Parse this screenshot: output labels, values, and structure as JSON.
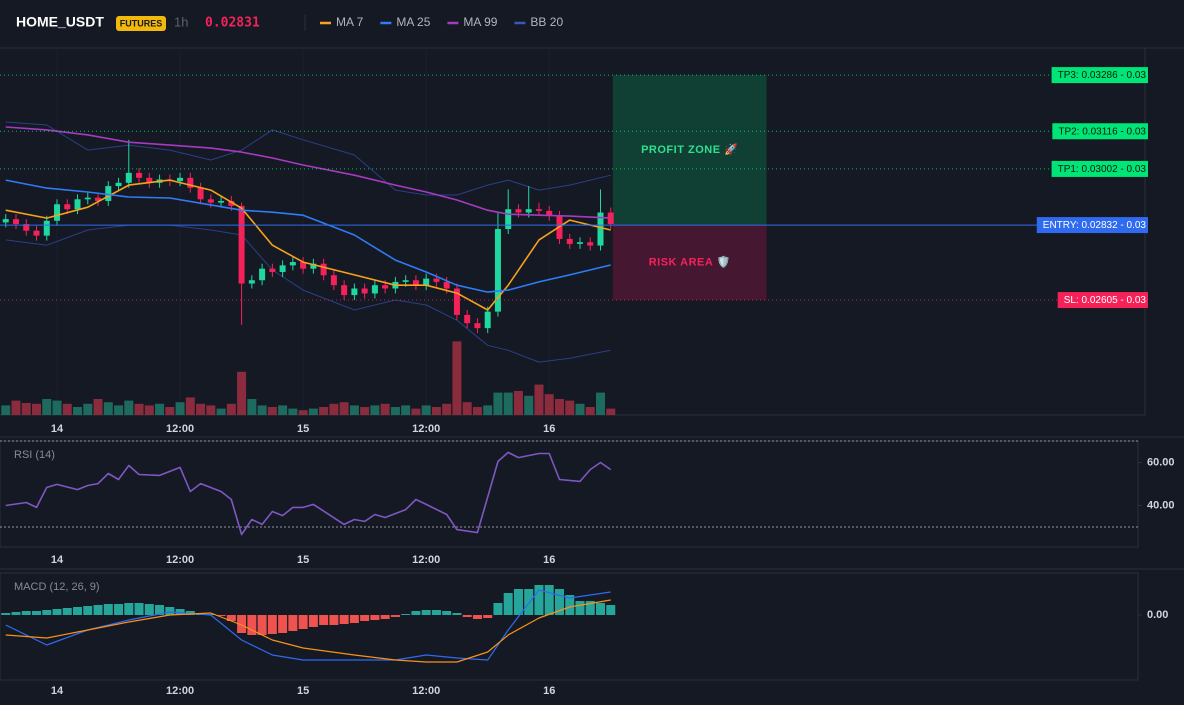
{
  "header": {
    "symbol": "HOME_USDT",
    "badge": "FUTURES",
    "interval": "1h",
    "price": "0.02831"
  },
  "chart_data": [
    {
      "type": "candlestick",
      "x": [
        -5,
        -4,
        -3,
        -2,
        -1,
        0,
        1,
        2,
        3,
        4,
        5,
        6,
        7,
        8,
        9,
        10,
        11,
        12,
        13,
        14,
        15,
        16,
        17,
        18,
        19,
        20,
        21,
        22,
        23,
        24,
        25,
        26,
        27,
        28,
        29,
        30,
        31,
        32,
        33,
        34,
        35,
        36,
        37,
        38,
        39,
        40,
        41,
        42,
        43,
        44,
        45,
        46,
        47,
        48,
        49,
        50,
        51,
        52,
        53,
        54
      ],
      "open": [
        0.0284,
        0.0285,
        0.02835,
        0.02815,
        0.028,
        0.02845,
        0.02895,
        0.0288,
        0.0291,
        0.02915,
        0.02905,
        0.0295,
        0.0296,
        0.0299,
        0.02975,
        0.0296,
        0.0297,
        0.02965,
        0.02975,
        0.02945,
        0.0291,
        0.029,
        0.02905,
        0.0289,
        0.02655,
        0.02665,
        0.027,
        0.0269,
        0.0271,
        0.0272,
        0.027,
        0.02715,
        0.0268,
        0.0265,
        0.0262,
        0.0264,
        0.02625,
        0.0265,
        0.0264,
        0.0266,
        0.02665,
        0.0265,
        0.0267,
        0.0266,
        0.0264,
        0.0256,
        0.02535,
        0.0252,
        0.0257,
        0.0282,
        0.0288,
        0.0287,
        0.0288,
        0.02875,
        0.0286,
        0.0279,
        0.02775,
        0.0278,
        0.0277,
        0.0287
      ],
      "high": [
        0.02865,
        0.02865,
        0.0285,
        0.0283,
        0.0286,
        0.0291,
        0.0291,
        0.02925,
        0.0293,
        0.0293,
        0.02965,
        0.02975,
        0.0309,
        0.03005,
        0.0299,
        0.02985,
        0.02985,
        0.0299,
        0.0299,
        0.0296,
        0.02925,
        0.0292,
        0.0292,
        0.029,
        0.0268,
        0.02715,
        0.02715,
        0.02725,
        0.02735,
        0.02735,
        0.0273,
        0.0273,
        0.02695,
        0.02665,
        0.02655,
        0.02655,
        0.02665,
        0.02665,
        0.02675,
        0.0268,
        0.0268,
        0.02685,
        0.02685,
        0.02675,
        0.02655,
        0.02575,
        0.0255,
        0.02585,
        0.0287,
        0.0294,
        0.02895,
        0.0295,
        0.029,
        0.0289,
        0.02875,
        0.02805,
        0.02795,
        0.02795,
        0.0294,
        0.02885
      ],
      "low": [
        0.02825,
        0.0282,
        0.028,
        0.02785,
        0.02785,
        0.0283,
        0.02865,
        0.02865,
        0.02895,
        0.0289,
        0.0289,
        0.02935,
        0.02945,
        0.0296,
        0.02945,
        0.02945,
        0.0295,
        0.0295,
        0.0293,
        0.02895,
        0.02885,
        0.02885,
        0.02875,
        0.0253,
        0.0264,
        0.0265,
        0.02675,
        0.02675,
        0.02695,
        0.02685,
        0.02685,
        0.02665,
        0.02635,
        0.02605,
        0.02605,
        0.0261,
        0.0261,
        0.02625,
        0.02625,
        0.02645,
        0.02635,
        0.02635,
        0.02645,
        0.02625,
        0.02545,
        0.0252,
        0.02505,
        0.02505,
        0.02555,
        0.02805,
        0.02855,
        0.02855,
        0.0286,
        0.02845,
        0.02775,
        0.0276,
        0.0276,
        0.02755,
        0.02755,
        0.0282
      ],
      "close": [
        0.0285,
        0.02835,
        0.02815,
        0.028,
        0.02845,
        0.02895,
        0.0288,
        0.0291,
        0.02915,
        0.02905,
        0.0295,
        0.0296,
        0.0299,
        0.02975,
        0.0296,
        0.0297,
        0.02965,
        0.02975,
        0.02945,
        0.0291,
        0.029,
        0.02905,
        0.0289,
        0.02655,
        0.02665,
        0.027,
        0.0269,
        0.0271,
        0.0272,
        0.027,
        0.02715,
        0.0268,
        0.0265,
        0.0262,
        0.0264,
        0.02625,
        0.0265,
        0.0264,
        0.0266,
        0.02665,
        0.0265,
        0.0267,
        0.0266,
        0.0264,
        0.0256,
        0.02535,
        0.0252,
        0.0257,
        0.0282,
        0.0288,
        0.0287,
        0.0288,
        0.02875,
        0.0286,
        0.0279,
        0.02775,
        0.0278,
        0.0277,
        0.0287,
        0.02835
      ],
      "up_color": "#1fd8a0",
      "down_color": "#f5225a",
      "volume": [
        12,
        18,
        15,
        14,
        20,
        18,
        14,
        10,
        14,
        20,
        16,
        12,
        18,
        14,
        12,
        14,
        10,
        16,
        22,
        14,
        12,
        8,
        14,
        54,
        20,
        12,
        10,
        12,
        8,
        6,
        8,
        10,
        14,
        16,
        12,
        10,
        12,
        14,
        10,
        12,
        8,
        12,
        10,
        14,
        92,
        16,
        10,
        12,
        28,
        28,
        30,
        24,
        38,
        26,
        20,
        18,
        14,
        10,
        28,
        8
      ],
      "volume_ylim": [
        0,
        100
      ],
      "volume_up_color": "#1d6b5f",
      "volume_down_color": "#8b2c3e",
      "line_x": [
        -5,
        -1,
        3,
        7,
        11,
        15,
        18,
        21,
        24,
        29,
        33,
        36,
        39,
        42,
        44,
        47,
        50,
        54
      ],
      "lines": [
        {
          "name": "MA 7",
          "color": "#f7a21b",
          "values": [
            0.02877,
            0.02853,
            0.02886,
            0.02953,
            0.02968,
            0.02938,
            0.02883,
            0.02771,
            0.0272,
            0.02681,
            0.0265,
            0.0265,
            0.02626,
            0.02575,
            0.0265,
            0.02787,
            0.02847,
            0.02817
          ]
        },
        {
          "name": "MA 25",
          "color": "#2f7cf6",
          "values": [
            0.02968,
            0.02944,
            0.02932,
            0.02917,
            0.02914,
            0.02893,
            0.02877,
            0.02871,
            0.02862,
            0.02802,
            0.02726,
            0.0269,
            0.0265,
            0.02629,
            0.02635,
            0.0266,
            0.02681,
            0.02711
          ]
        },
        {
          "name": "MA 99",
          "color": "#a63bbf",
          "values": [
            0.03129,
            0.0312,
            0.03105,
            0.03083,
            0.03074,
            0.03065,
            0.03053,
            0.03035,
            0.03014,
            0.02983,
            0.02953,
            0.02932,
            0.02908,
            0.02877,
            0.02865,
            0.02862,
            0.02859,
            0.02853
          ]
        }
      ],
      "bands": {
        "name": "BB 20",
        "color": "#2a3f86",
        "upper": [
          0.03144,
          0.03135,
          0.03059,
          0.03074,
          0.03059,
          0.03029,
          0.03059,
          0.0312,
          0.0309,
          0.03044,
          0.02938,
          0.02923,
          0.02923,
          0.02953,
          0.02968,
          0.02938,
          0.02953,
          0.02983
        ],
        "lower": [
          0.02787,
          0.02771,
          0.02817,
          0.02832,
          0.02832,
          0.02817,
          0.02802,
          0.02696,
          0.02635,
          0.02575,
          0.02605,
          0.0259,
          0.02544,
          0.02468,
          0.02453,
          0.02417,
          0.02429,
          0.02453
        ]
      },
      "levels": [
        {
          "text": "TP3: 0.03286 - 0.03",
          "value": 0.03286,
          "color": "#00e676",
          "text_color": "#0b1a12",
          "style": "dotted"
        },
        {
          "text": "TP2: 0.03116 - 0.03",
          "value": 0.03116,
          "color": "#00e676",
          "text_color": "#0b1a12",
          "style": "dotted"
        },
        {
          "text": "TP1: 0.03002 - 0.03",
          "value": 0.03002,
          "color": "#00e676",
          "text_color": "#0b1a12",
          "style": "dotted"
        },
        {
          "text": "ENTRY: 0.02832 - 0.03",
          "value": 0.02832,
          "color": "#2f6bf0",
          "text_color": "#ffffff",
          "style": "solid"
        },
        {
          "text": "SL: 0.02605 - 0.03",
          "value": 0.02605,
          "color": "#f5225a",
          "text_color": "#ffffff",
          "style": "dotted"
        }
      ],
      "zones": [
        {
          "label": "PROFIT ZONE 🚀",
          "from": 0.02832,
          "to": 0.03286,
          "x": [
            54.2,
            69.2
          ],
          "color": "#0f4436",
          "text_color": "#2ee08f"
        },
        {
          "label": "RISK AREA 🛡️",
          "from": 0.02605,
          "to": 0.02832,
          "x": [
            54.2,
            69.2
          ],
          "color": "#4a1733",
          "text_color": "#f5225a"
        }
      ],
      "xlim": [
        -5.56,
        106.1
      ],
      "xticks": [
        {
          "value": 0,
          "label": "14"
        },
        {
          "value": 12,
          "label": "12:00"
        },
        {
          "value": 24,
          "label": "15"
        },
        {
          "value": 36,
          "label": "12:00"
        },
        {
          "value": 48,
          "label": "16"
        }
      ],
      "ylim": [
        0.02257,
        0.03362
      ],
      "grid": true
    },
    {
      "type": "line",
      "title": "RSI (14)",
      "color": "#7e57c2",
      "x": [
        -5,
        -3,
        -2,
        -1,
        0,
        2,
        3,
        4,
        5,
        6,
        7,
        8,
        10,
        12,
        13,
        14,
        16,
        17,
        18,
        19,
        20,
        21,
        22,
        23,
        24,
        25,
        28,
        29,
        30,
        31,
        32,
        34,
        35,
        36,
        38,
        39,
        41,
        43,
        44,
        45,
        47,
        48,
        49,
        51,
        52,
        53,
        54
      ],
      "values": [
        40,
        41.4,
        39.1,
        48.4,
        49.8,
        47.4,
        49.3,
        50.2,
        54.9,
        52.1,
        58.6,
        54.4,
        54,
        57.7,
        46.5,
        50.2,
        46.5,
        42.8,
        26.5,
        33.5,
        31.2,
        37.2,
        35.3,
        39.1,
        39.1,
        40.5,
        31.2,
        33.5,
        32.6,
        35.8,
        34.4,
        38.1,
        42.8,
        40.5,
        35.8,
        28.8,
        27.4,
        60.5,
        64.7,
        62.3,
        64.2,
        64.2,
        52.1,
        51.2,
        56.7,
        60,
        56.7
      ],
      "bands": [
        30,
        70
      ],
      "xlim": [
        -5.56,
        106.1
      ],
      "xticks": [
        {
          "value": 0,
          "label": "14"
        },
        {
          "value": 12,
          "label": "12:00"
        },
        {
          "value": 24,
          "label": "15"
        },
        {
          "value": 36,
          "label": "12:00"
        },
        {
          "value": 48,
          "label": "16"
        }
      ],
      "ylim": [
        20.7,
        70
      ],
      "yticks": [
        {
          "value": 60,
          "label": "60.00"
        },
        {
          "value": 40,
          "label": "40.00"
        }
      ]
    },
    {
      "type": "macd",
      "title": "MACD (12, 26, 9)",
      "x": [
        -5,
        -4,
        -3,
        -2,
        -1,
        0,
        1,
        2,
        3,
        4,
        5,
        6,
        7,
        8,
        9,
        10,
        11,
        12,
        13,
        14,
        15,
        16,
        17,
        18,
        19,
        20,
        21,
        22,
        23,
        24,
        25,
        26,
        27,
        28,
        29,
        30,
        31,
        32,
        33,
        34,
        35,
        36,
        37,
        38,
        39,
        40,
        41,
        42,
        43,
        44,
        45,
        46,
        47,
        48,
        49,
        50,
        51,
        52,
        53,
        54
      ],
      "histogram": [
        2e-05,
        3e-05,
        4e-05,
        4e-05,
        5e-05,
        6e-05,
        7e-05,
        8e-05,
        9e-05,
        0.0001,
        0.00011,
        0.00011,
        0.00012,
        0.00012,
        0.00011,
        0.0001,
        8e-05,
        6e-05,
        4e-05,
        2e-05,
        1e-05,
        -1e-05,
        -6e-05,
        -0.00018,
        -0.0002,
        -0.0002,
        -0.00019,
        -0.00018,
        -0.00016,
        -0.00014,
        -0.00012,
        -0.0001,
        -0.0001,
        -9e-05,
        -8e-05,
        -6e-05,
        -5e-05,
        -4e-05,
        -2e-05,
        1e-05,
        4e-05,
        5e-05,
        5e-05,
        4e-05,
        2e-05,
        -2e-05,
        -4e-05,
        -3e-05,
        0.00012,
        0.00022,
        0.00026,
        0.00026,
        0.0003,
        0.0003,
        0.00026,
        0.0002,
        0.00014,
        0.00014,
        0.00012,
        0.0001
      ],
      "up_color": "#26a69a",
      "down_color": "#ef5350",
      "line_x": [
        -5,
        -1,
        3,
        7,
        11,
        15,
        18,
        21,
        24,
        29,
        33,
        36,
        39,
        42,
        44,
        47,
        50,
        54
      ],
      "lines": [
        {
          "color": "#2f6bf0",
          "values": [
            -0.0001,
            -0.0003,
            -0.00015,
            -5e-05,
            3e-05,
            0,
            -0.00025,
            -0.0004,
            -0.00045,
            -0.00045,
            -0.00045,
            -0.0004,
            -0.00043,
            -0.00045,
            -0.00015,
            0.00025,
            0.00017,
            0.00023
          ]
        },
        {
          "color": "#f7931a",
          "values": [
            -0.0002,
            -0.00023,
            -0.00015,
            -7e-05,
            0,
            2e-05,
            -0.0001,
            -0.00025,
            -0.00033,
            -0.0004,
            -0.00045,
            -0.00047,
            -0.00047,
            -0.00037,
            -0.0002,
            -3e-05,
            8e-05,
            0.00015
          ]
        }
      ],
      "xlim": [
        -5.56,
        106.1
      ],
      "xticks": [
        {
          "value": 0,
          "label": "14"
        },
        {
          "value": 12,
          "label": "12:00"
        },
        {
          "value": 24,
          "label": "15"
        },
        {
          "value": 36,
          "label": "12:00"
        },
        {
          "value": 48,
          "label": "16"
        }
      ],
      "ylim": [
        -0.00065,
        0.00042
      ],
      "yticks": [
        {
          "value": 0,
          "label": "0.00"
        }
      ]
    }
  ]
}
